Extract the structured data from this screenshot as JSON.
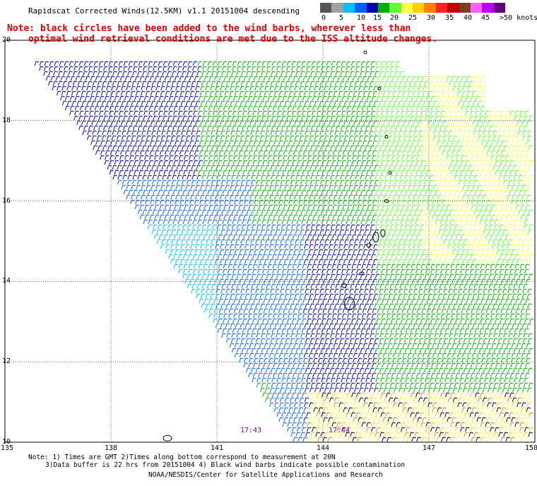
{
  "title": "Rapidscat Corrected Winds(12.5KM) v1.1 20151004 descending",
  "note": {
    "line1": "Note: black circles have been added to the wind barbs, wherever less than",
    "line2": "optimal wind retrieval conditions are met due to the ISS altitude changes."
  },
  "color_scale": {
    "colors": [
      "#555555",
      "#a0a0a0",
      "#00c0ff",
      "#0060ff",
      "#0000b0",
      "#00b000",
      "#60ff30",
      "#ffff40",
      "#ffd000",
      "#ff8000",
      "#ff2020",
      "#c00000",
      "#804020",
      "#ff60ff",
      "#c000ff",
      "#600080"
    ],
    "labels": [
      "0",
      "5",
      "10",
      "15",
      "20",
      "25",
      "30",
      "35",
      "40",
      "45",
      ">50 knots"
    ]
  },
  "axes": {
    "x_ticks": [
      "135",
      "138",
      "141",
      "144",
      "147",
      "150"
    ],
    "y_ticks": [
      "10",
      "12",
      "14",
      "16",
      "18",
      "20"
    ],
    "x_range": [
      135,
      150
    ],
    "y_range": [
      10,
      20
    ]
  },
  "time_labels": [
    {
      "text": "17:43",
      "lon": 141.9,
      "lat": 10.3
    },
    {
      "text": "17:44",
      "lon": 144.4,
      "lat": 10.3
    }
  ],
  "footnote": {
    "line1": "Note: 1) Times are GMT 2)Times along bottom correspond to measurement at 20N",
    "line2": "3)Data buffer is 22 hrs from 20151004 4) Black wind barbs indicate possible contamination",
    "line3": "NOAA/NESDIS/Center for Satellite Applications and Research"
  }
}
